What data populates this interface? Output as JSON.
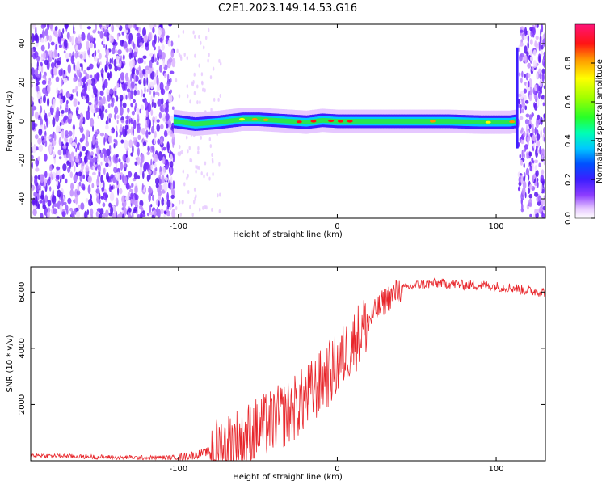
{
  "title": "C2E1.2023.149.14.53.G16",
  "chart_data": [
    {
      "type": "heatmap",
      "xlabel": "Height of straight line (km)",
      "ylabel": "Frequency (Hz)",
      "xlim": [
        -193,
        131
      ],
      "ylim": [
        -50,
        50
      ],
      "xticks": [
        -100,
        0,
        100
      ],
      "yticks": [
        -40,
        -20,
        0,
        20,
        40
      ],
      "grid": false,
      "colorbar": {
        "label": "Normalized spectral amplitude",
        "range": [
          0,
          1
        ],
        "ticks": [
          0.0,
          0.2,
          0.4,
          0.6,
          0.8
        ]
      },
      "ridge": {
        "description_source": "visible band",
        "x": [
          -103,
          -90,
          -75,
          -60,
          -50,
          -40,
          -30,
          -20,
          -10,
          0,
          10,
          30,
          50,
          70,
          90,
          108,
          112
        ],
        "y": [
          0,
          -1.5,
          -0.5,
          1,
          1,
          0.5,
          0,
          -0.5,
          0.5,
          0,
          0,
          0,
          0,
          0,
          -0.5,
          -0.5,
          0
        ]
      }
    },
    {
      "type": "line",
      "xlabel": "Height of straight line (km)",
      "ylabel": "SNR (10 * v/v)",
      "xlim": [
        -193,
        131
      ],
      "ylim": [
        0,
        6900
      ],
      "xticks": [
        -100,
        0,
        100
      ],
      "yticks": [
        2000,
        4000,
        6000
      ],
      "grid": false,
      "color": "#e8262b",
      "series": [
        {
          "x": [
            -193,
            -180,
            -160,
            -140,
            -120,
            -100,
            -90,
            -80,
            -70,
            -60,
            -50,
            -40,
            -30,
            -20,
            -10,
            0,
            10,
            20,
            30,
            40,
            50,
            60,
            70,
            80,
            90,
            100,
            110,
            120,
            131
          ],
          "y": [
            200,
            180,
            150,
            120,
            110,
            120,
            200,
            350,
            550,
            800,
            1100,
            1400,
            1750,
            2200,
            2800,
            3400,
            4200,
            5000,
            5700,
            6100,
            6250,
            6300,
            6300,
            6250,
            6250,
            6200,
            6150,
            6050,
            6000
          ]
        }
      ]
    }
  ]
}
